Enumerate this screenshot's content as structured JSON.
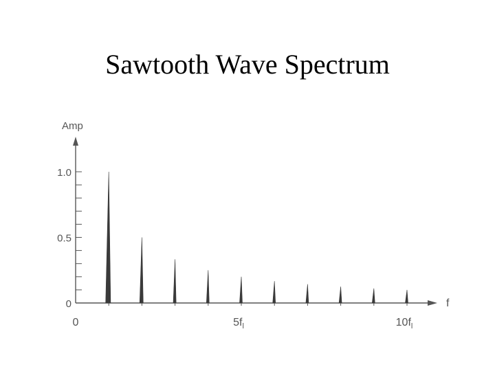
{
  "slide": {
    "title": "Sawtooth Wave Spectrum"
  },
  "chart_data": {
    "type": "bar",
    "title": "",
    "xlabel": "f",
    "ylabel": "Amp",
    "x": [
      1,
      2,
      3,
      4,
      5,
      6,
      7,
      8,
      9,
      10
    ],
    "values": [
      1.0,
      0.5,
      0.333,
      0.25,
      0.2,
      0.167,
      0.143,
      0.125,
      0.111,
      0.1
    ],
    "xlim": [
      0,
      10
    ],
    "ylim": [
      0,
      1.0
    ],
    "y_ticks": [
      {
        "value": 0,
        "label": "0"
      },
      {
        "value": 0.5,
        "label": "0.5"
      },
      {
        "value": 1.0,
        "label": "1.0"
      }
    ],
    "x_ticks": [
      {
        "value": 0,
        "label": "0"
      },
      {
        "value": 5,
        "label": "5f",
        "sub": "l"
      },
      {
        "value": 10,
        "label": "10f",
        "sub": "l"
      }
    ],
    "y_minor_step": 0.1,
    "grid": false,
    "legend": "none",
    "bar_color": "#3a3a3a",
    "axis_color": "#555555"
  }
}
